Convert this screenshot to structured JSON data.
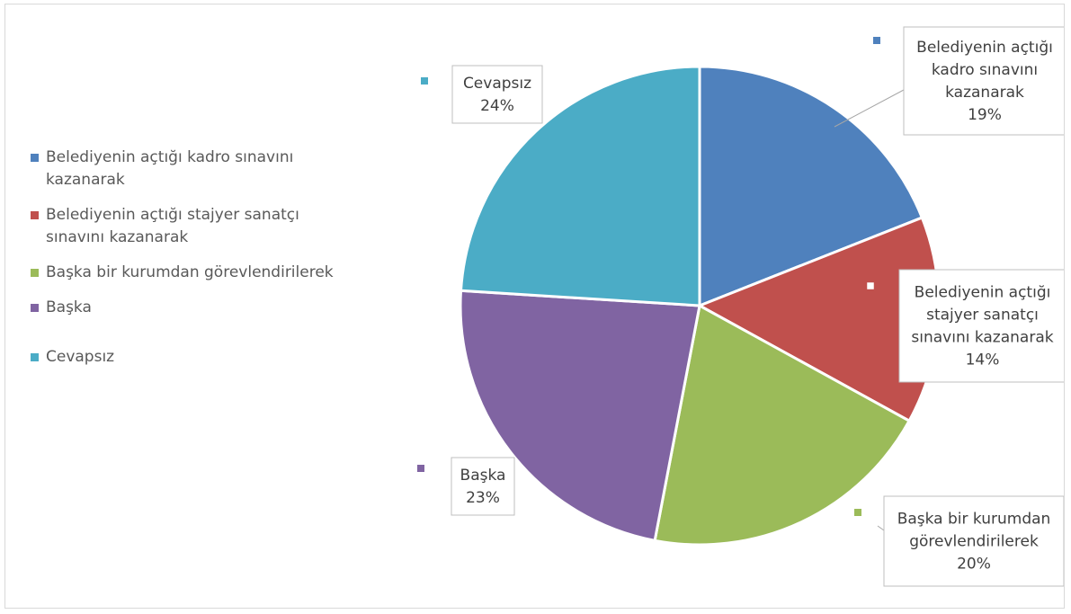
{
  "chart_data": {
    "type": "pie",
    "categories": [
      "Belediyenin açtığı kadro sınavını kazanarak",
      "Belediyenin açtığı stajyer sanatçı sınavını kazanarak",
      "Başka bir kurumdan görevlendirilerek",
      "Başka",
      "Cevapsız"
    ],
    "values": [
      19,
      14,
      20,
      23,
      24
    ],
    "value_labels": [
      "19%",
      "14%",
      "20%",
      "23%",
      "24%"
    ],
    "colors": [
      "#4f81bd",
      "#c0504d",
      "#9bbb59",
      "#8064a2",
      "#4bacc6"
    ],
    "legend_position": "left",
    "data_label_lines": [
      [
        "Belediyenin açtığı",
        "kadro sınavını",
        "kazanarak"
      ],
      [
        "Belediyenin açtığı",
        "stajyer sanatçı",
        "sınavını kazanarak"
      ],
      [
        "Başka bir kurumdan",
        "görevlendirilerek"
      ],
      [
        "Başka"
      ],
      [
        "Cevapsız"
      ]
    ]
  },
  "legend": {
    "items": [
      "Belediyenin açtığı kadro sınavını kazanarak",
      "Belediyenin açtığı stajyer sanatçı sınavını kazanarak",
      "Başka bir kurumdan görevlendirilerek",
      "Başka",
      "Cevapsız"
    ]
  }
}
